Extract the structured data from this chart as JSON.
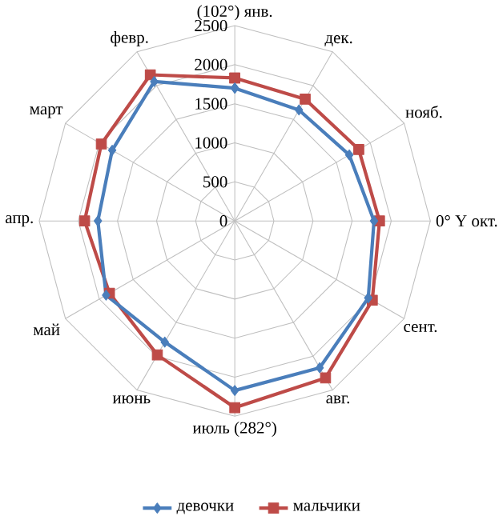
{
  "chart_data": {
    "type": "radar",
    "categories": [
      "(102°) янв.",
      "дек.",
      "нояб.",
      "0° Y окт.",
      "сент.",
      "авг.",
      "июль (282°)",
      "июнь",
      "май",
      "апр.",
      "март",
      "февр."
    ],
    "ylim": [
      0,
      2500
    ],
    "yticks": [
      0,
      500,
      1000,
      1500,
      2000,
      2500
    ],
    "grid": true,
    "legend": "bottom",
    "series": [
      {
        "name": "девочки",
        "color": "#4a7ebb",
        "marker": "diamond",
        "values": [
          1700,
          1640,
          1690,
          1780,
          1970,
          2170,
          2170,
          1790,
          1900,
          1750,
          1810,
          2060
        ]
      },
      {
        "name": "мальчики",
        "color": "#be4b48",
        "marker": "square",
        "values": [
          1830,
          1800,
          1830,
          1850,
          2030,
          2320,
          2390,
          1980,
          1850,
          1920,
          1970,
          2160
        ]
      }
    ]
  }
}
